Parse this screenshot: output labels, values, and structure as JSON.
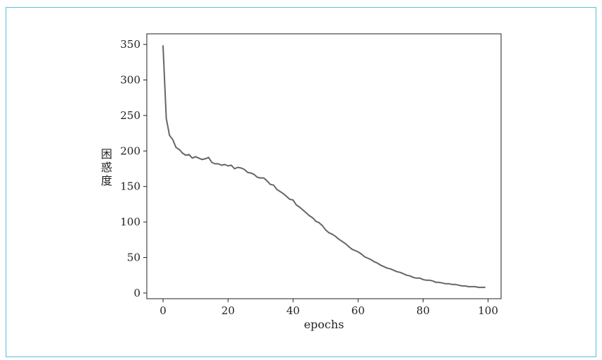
{
  "chart_data": {
    "type": "line",
    "title": "",
    "xlabel": "epochs",
    "ylabel": "困惑度",
    "xlim": [
      -5,
      104
    ],
    "ylim": [
      -8,
      365
    ],
    "x_ticks": [
      0,
      20,
      40,
      60,
      80,
      100
    ],
    "y_ticks": [
      0,
      50,
      100,
      150,
      200,
      250,
      300,
      350
    ],
    "grid": false,
    "line_color": "#666666",
    "series": [
      {
        "x": [
          0,
          1,
          2,
          3,
          4,
          5,
          6,
          7,
          8,
          9,
          10,
          11,
          12,
          13,
          14,
          15,
          16,
          17,
          18,
          19,
          20,
          21,
          22,
          23,
          24,
          25,
          26,
          27,
          28,
          29,
          30,
          31,
          32,
          33,
          34,
          35,
          36,
          37,
          38,
          39,
          40,
          41,
          42,
          43,
          44,
          45,
          46,
          47,
          48,
          49,
          50,
          51,
          52,
          53,
          54,
          55,
          56,
          57,
          58,
          59,
          60,
          61,
          62,
          63,
          64,
          65,
          66,
          67,
          68,
          69,
          70,
          71,
          72,
          73,
          74,
          75,
          76,
          77,
          78,
          79,
          80,
          81,
          82,
          83,
          84,
          85,
          86,
          87,
          88,
          89,
          90,
          91,
          92,
          93,
          94,
          95,
          96,
          97,
          98,
          99
        ],
        "y": [
          348,
          246,
          222,
          216,
          205,
          202,
          197,
          194,
          195,
          190,
          192,
          190,
          188,
          189,
          191,
          184,
          182,
          182,
          180,
          181,
          179,
          180,
          175,
          177,
          176,
          174,
          170,
          169,
          167,
          163,
          162,
          162,
          158,
          153,
          152,
          146,
          143,
          140,
          136,
          132,
          131,
          124,
          121,
          117,
          113,
          109,
          106,
          101,
          99,
          95,
          89,
          85,
          83,
          80,
          76,
          73,
          70,
          66,
          62,
          60,
          58,
          55,
          51,
          49,
          47,
          44,
          42,
          39,
          37,
          35,
          34,
          32,
          30,
          29,
          27,
          25,
          24,
          22,
          21,
          21,
          19,
          18,
          18,
          17,
          15,
          15,
          14,
          13,
          13,
          12,
          12,
          11,
          10,
          10,
          9,
          9,
          9,
          8,
          8,
          8
        ]
      }
    ]
  }
}
